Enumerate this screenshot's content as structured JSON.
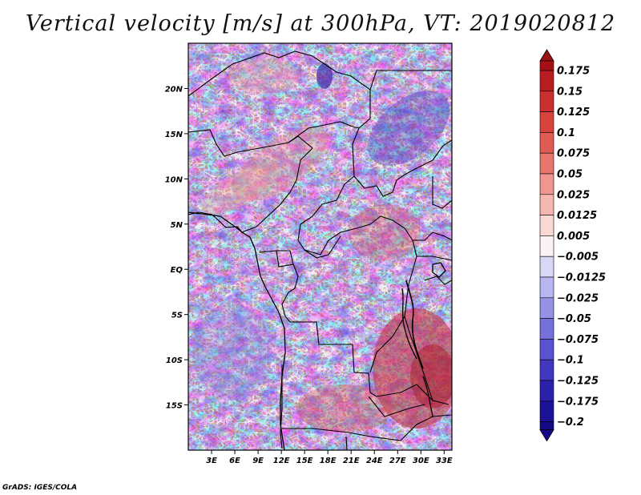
{
  "title": "Vertical velocity [m/s] at 300hPa, VT: 2019020812",
  "credit": "GrADS: IGES/COLA",
  "map": {
    "lon_range": [
      0,
      34
    ],
    "lat_range": [
      -20,
      25
    ],
    "x_ticks": [
      {
        "value": 3,
        "label": "3E"
      },
      {
        "value": 6,
        "label": "6E"
      },
      {
        "value": 9,
        "label": "9E"
      },
      {
        "value": 12,
        "label": "12E"
      },
      {
        "value": 15,
        "label": "15E"
      },
      {
        "value": 18,
        "label": "18E"
      },
      {
        "value": 21,
        "label": "21E"
      },
      {
        "value": 24,
        "label": "24E"
      },
      {
        "value": 27,
        "label": "27E"
      },
      {
        "value": 30,
        "label": "30E"
      },
      {
        "value": 33,
        "label": "33E"
      }
    ],
    "y_ticks": [
      {
        "value": 20,
        "label": "20N"
      },
      {
        "value": 15,
        "label": "15N"
      },
      {
        "value": 10,
        "label": "10N"
      },
      {
        "value": 5,
        "label": "5N"
      },
      {
        "value": 0,
        "label": "EQ"
      },
      {
        "value": -5,
        "label": "5S"
      },
      {
        "value": -10,
        "label": "10S"
      },
      {
        "value": -15,
        "label": "15S"
      }
    ]
  },
  "colorbar": {
    "levels": [
      {
        "label": "0.175",
        "color": "#a50f15"
      },
      {
        "label": "0.15",
        "color": "#b81d22"
      },
      {
        "label": "0.125",
        "color": "#c9302f"
      },
      {
        "label": "0.1",
        "color": "#d7443e"
      },
      {
        "label": "0.075",
        "color": "#e05b55"
      },
      {
        "label": "0.05",
        "color": "#e8766f"
      },
      {
        "label": "0.025",
        "color": "#f0968f"
      },
      {
        "label": "0.0125",
        "color": "#f6b7b0"
      },
      {
        "label": "0.005",
        "color": "#fad9d4"
      },
      {
        "label": "−0.005",
        "color": "#fbf3f3"
      },
      {
        "label": "−0.0125",
        "color": "#d8d8f6"
      },
      {
        "label": "−0.025",
        "color": "#b7b6ef"
      },
      {
        "label": "−0.05",
        "color": "#9693e6"
      },
      {
        "label": "−0.075",
        "color": "#7670dc"
      },
      {
        "label": "−0.1",
        "color": "#5a52d0"
      },
      {
        "label": "−0.125",
        "color": "#4137c0"
      },
      {
        "label": "−0.175",
        "color": "#2c21ac"
      },
      {
        "label": "−0.2",
        "color": "#1c1296"
      }
    ],
    "top_color": "#9b1216",
    "bottom_color": "#150a86"
  }
}
